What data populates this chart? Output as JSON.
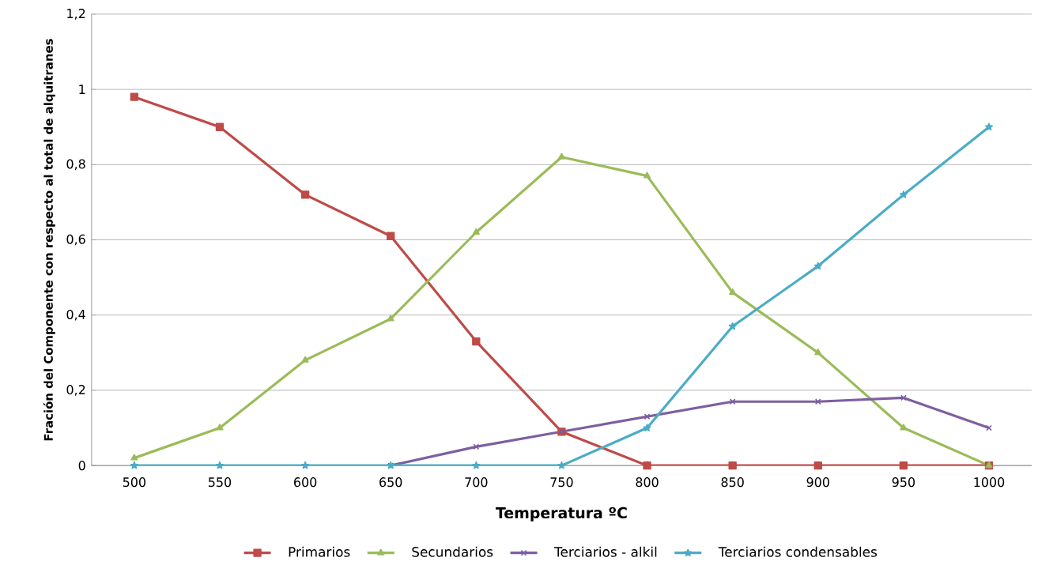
{
  "chart_data": {
    "type": "line",
    "xlabel": "Temperatura ºC",
    "ylabel": "Fración  del Componente con respecto al total de alquitranes",
    "categories": [
      "500",
      "550",
      "600",
      "650",
      "700",
      "750",
      "800",
      "850",
      "900",
      "950",
      "1000"
    ],
    "series": [
      {
        "name": "Primarios",
        "color": "#be4b48",
        "marker": "square",
        "values": [
          0.98,
          0.9,
          0.72,
          0.61,
          0.33,
          0.09,
          0,
          0,
          0,
          0,
          0
        ]
      },
      {
        "name": "Secundarios",
        "color": "#9bbb59",
        "marker": "triangle",
        "values": [
          0.02,
          0.1,
          0.28,
          0.39,
          0.62,
          0.82,
          0.77,
          0.46,
          0.3,
          0.1,
          0
        ]
      },
      {
        "name": "Terciarios - alkil",
        "color": "#7d5fa0",
        "marker": "cross",
        "values": [
          null,
          null,
          null,
          0,
          0.05,
          0.09,
          0.13,
          0.17,
          0.17,
          0.18,
          0.1
        ]
      },
      {
        "name": "Terciarios condensables",
        "color": "#4bacc6",
        "marker": "star",
        "values": [
          0,
          0,
          0,
          0,
          0,
          0,
          0.1,
          0.37,
          0.53,
          0.72,
          0.9
        ]
      }
    ],
    "ylim": [
      0,
      1.2
    ],
    "yticks": [
      0,
      {
        "value": 0.2,
        "label": "0,2"
      },
      {
        "value": 0.4,
        "label": "0,4"
      },
      {
        "value": 0.6,
        "label": "0,6"
      },
      {
        "value": 0.8,
        "label": "0,8"
      },
      1,
      {
        "value": 1.2,
        "label": "1,2"
      }
    ],
    "grid": "y",
    "legend": "bottom",
    "line_style": "solid"
  }
}
